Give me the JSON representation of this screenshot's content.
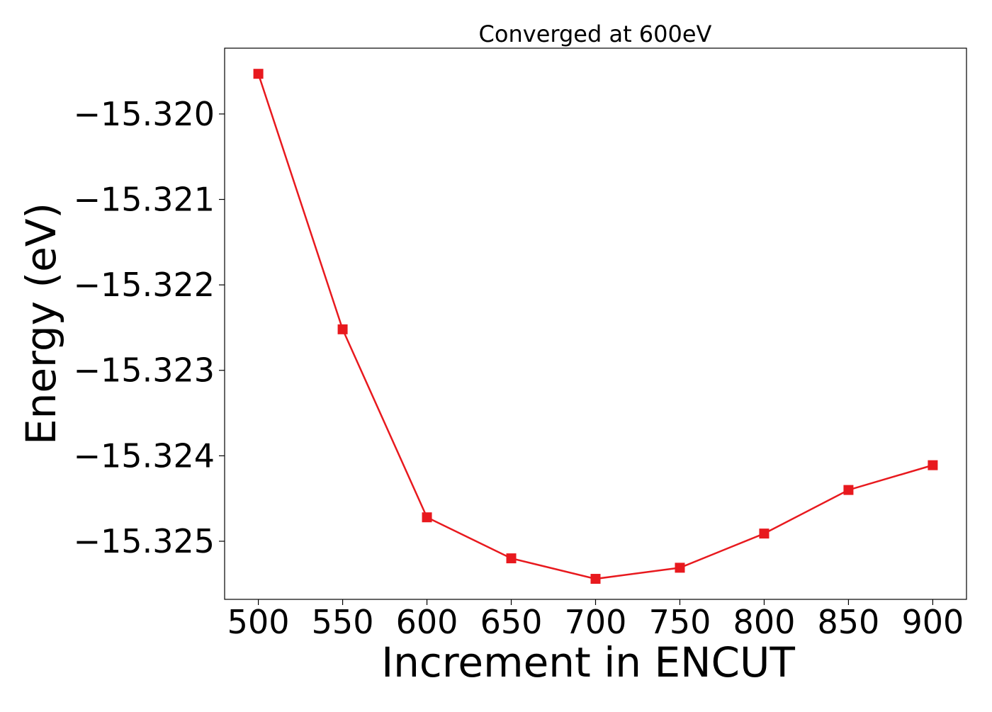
{
  "chart_data": {
    "type": "line",
    "title": "Converged at 600eV",
    "xlabel": "Increment in ENCUT",
    "ylabel": "Energy (eV)",
    "x": [
      500,
      550,
      600,
      650,
      700,
      750,
      800,
      850,
      900
    ],
    "series": [
      {
        "values": [
          -15.31953,
          -15.32252,
          -15.32472,
          -15.3252,
          -15.32544,
          -15.32531,
          -15.32491,
          -15.3244,
          -15.32411
        ],
        "color": "#e8191e",
        "marker": "square"
      }
    ],
    "xlim": [
      480,
      920
    ],
    "ylim": [
      -15.32568,
      -15.31923
    ],
    "xticks": [
      500,
      550,
      600,
      650,
      700,
      750,
      800,
      850,
      900
    ],
    "xtick_labels": [
      "500",
      "550",
      "600",
      "650",
      "700",
      "750",
      "800",
      "850",
      "900"
    ],
    "yticks": [
      -15.32,
      -15.321,
      -15.322,
      -15.323,
      -15.324,
      -15.325
    ],
    "ytick_labels": [
      "−15.320",
      "−15.321",
      "−15.322",
      "−15.323",
      "−15.324",
      "−15.325"
    ],
    "grid": false,
    "legend": "none"
  }
}
